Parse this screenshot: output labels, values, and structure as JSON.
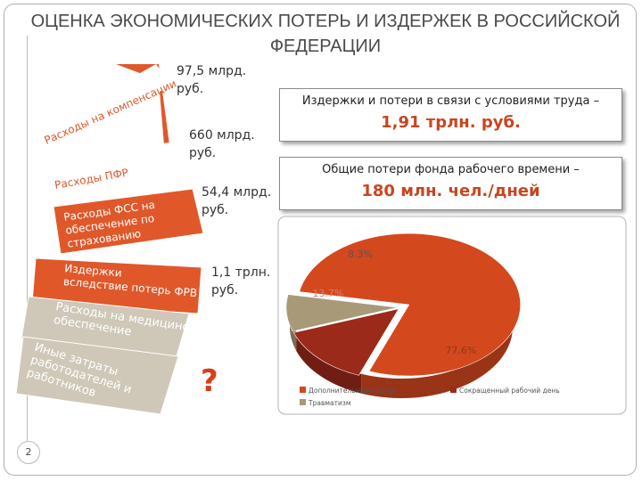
{
  "title": "ОЦЕНКА ЭКОНОМИЧЕСКИХ ПОТЕРЬ И ИЗДЕРЖЕК В РОССИЙСКОЙ ФЕДЕРАЦИИ",
  "steps": [
    {
      "label_lines": [
        "Расходы на компенсации"
      ],
      "amount_lines": [
        "97,5 млрд.",
        "руб."
      ],
      "color": "#e0582a"
    },
    {
      "label_lines": [
        "Расходы ПФР"
      ],
      "amount_lines": [
        "660 млрд.",
        "руб."
      ],
      "color": "#e0582a"
    },
    {
      "label_lines": [
        "Расходы ФСС на",
        "обеспечение по",
        "страхованию"
      ],
      "amount_lines": [
        "54,4 млрд.",
        "руб."
      ],
      "color": "#e0582a"
    },
    {
      "label_lines": [
        "Издержки",
        "вследствие потерь ФРВ"
      ],
      "amount_lines": [
        "1,1 трлн.",
        "руб."
      ],
      "color": "#e0582a"
    },
    {
      "label_lines": [
        "Расходы на медицинское",
        "обеспечение"
      ],
      "amount_lines": [],
      "color": "#cfc8b8"
    },
    {
      "label_lines": [
        "Иные затраты",
        "работодателей и",
        "работников"
      ],
      "amount_lines": [],
      "color": "#cfc8b8"
    }
  ],
  "question_mark": "?",
  "box1": {
    "label": "Издержки и потери в связи с условиями труда –",
    "value": "1,91 трлн. руб."
  },
  "box2": {
    "label": "Общие потери фонда рабочего времени –",
    "value": "180 млн. чел./дней"
  },
  "page_number": "2",
  "chart_data": {
    "type": "pie",
    "slices": [
      {
        "label": "77.6%",
        "value": 77.6,
        "color": "#d4481e"
      },
      {
        "label": "13.7%",
        "value": 13.7,
        "color": "#9b2a1a"
      },
      {
        "label": "8.3%",
        "value": 8.3,
        "color": "#a89a78"
      }
    ],
    "legend": [
      "Дополнительный отпуск",
      "Сокращенный рабочий день",
      "Травматизм"
    ],
    "legend_colors": [
      "#d4481e",
      "#9b2a1a",
      "#a89a78"
    ],
    "legend_position": "bottom",
    "style": "3d"
  }
}
